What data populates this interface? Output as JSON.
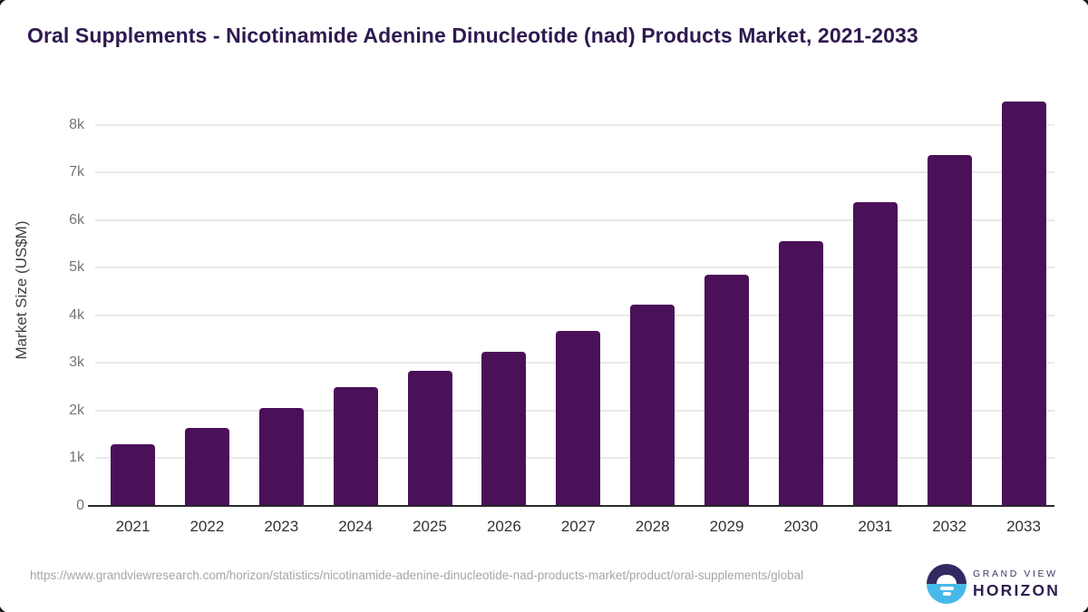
{
  "title": "Oral Supplements - Nicotinamide Adenine Dinucleotide (nad) Products Market, 2021-2033",
  "chart_data": {
    "type": "bar",
    "title": "Oral Supplements - Nicotinamide Adenine Dinucleotide (nad) Products Market, 2021-2033",
    "categories": [
      "2021",
      "2022",
      "2023",
      "2024",
      "2025",
      "2026",
      "2027",
      "2028",
      "2029",
      "2030",
      "2031",
      "2032",
      "2033"
    ],
    "values": [
      1290,
      1630,
      2040,
      2480,
      2830,
      3230,
      3670,
      4220,
      4850,
      5560,
      6380,
      7370,
      8500
    ],
    "xlabel": "",
    "ylabel": "Market Size (US$M)",
    "unit": "US$M",
    "ylim": [
      0,
      8600
    ],
    "yticks": [
      0,
      1000,
      2000,
      3000,
      4000,
      5000,
      6000,
      7000,
      8000
    ],
    "ytick_labels": [
      "0",
      "1k",
      "2k",
      "3k",
      "4k",
      "5k",
      "6k",
      "7k",
      "8k"
    ],
    "grid": true,
    "legend": false,
    "bar_color": "#4a1058"
  },
  "footer": {
    "source_url": "https://www.grandviewresearch.com/horizon/statistics/nicotinamide-adenine-dinucleotide-nad-products-market/product/oral-supplements/global",
    "logo": {
      "line1": "GRAND VIEW",
      "line2": "HORIZON",
      "icon": "horizon-sunrise-icon",
      "icon_top_color": "#322960",
      "icon_bottom_color": "#47b8e9"
    }
  },
  "colors": {
    "title_text": "#2f1a50",
    "axis_line": "#292929",
    "gridline": "#e9e9e9",
    "y_tick_text": "#757575",
    "x_tick_text": "#333333",
    "url_text": "#a6a6a6",
    "background": "#ffffff"
  }
}
